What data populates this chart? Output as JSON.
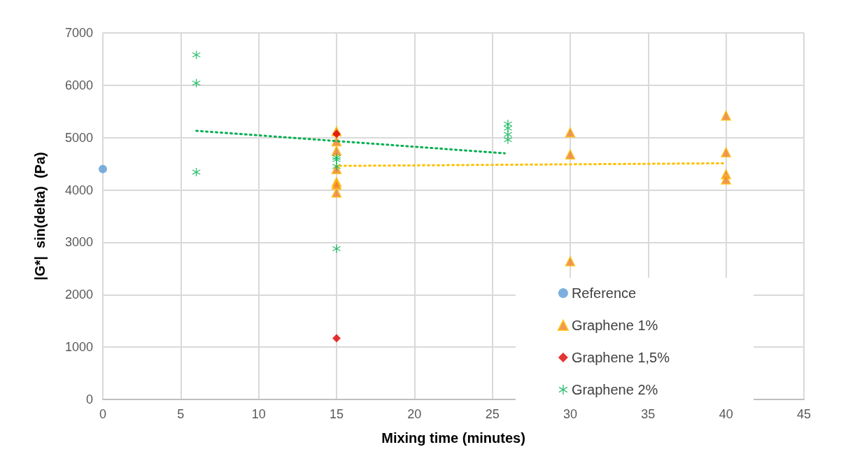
{
  "chart_data": {
    "type": "scatter",
    "xlabel": "Mixing time (minutes)",
    "ylabel": "|G*|  sin(delta)  (Pa)",
    "xlim": [
      0,
      45
    ],
    "xticks": [
      0,
      5,
      10,
      15,
      20,
      25,
      30,
      35,
      40,
      45
    ],
    "ylim": [
      0,
      7000
    ],
    "yticks": [
      0,
      1000,
      2000,
      3000,
      4000,
      5000,
      6000,
      7000
    ],
    "grid": true,
    "legend": "bottom right",
    "series": [
      {
        "name": "Reference",
        "color": "#5b9bd5",
        "marker": "circle",
        "x": [
          0
        ],
        "values": [
          4400
        ]
      },
      {
        "name": "Graphene 1%",
        "color": "#ed7d31",
        "marker": "triangle",
        "x": [
          15,
          15,
          15,
          15,
          15,
          15,
          15,
          30,
          30,
          30,
          40,
          40,
          40,
          40
        ],
        "values": [
          5120,
          4930,
          4750,
          4400,
          4150,
          4100,
          3950,
          5100,
          4680,
          2640,
          5420,
          4720,
          4300,
          4200
        ]
      },
      {
        "name": "Graphene 1,5%",
        "color": "#e00000",
        "marker": "diamond",
        "x": [
          15,
          15
        ],
        "values": [
          5070,
          1170
        ]
      },
      {
        "name": "Graphene 2%",
        "color": "#00b050",
        "marker": "star",
        "x": [
          6,
          6,
          6,
          15,
          15,
          15,
          15,
          26,
          26,
          26,
          26
        ],
        "values": [
          6580,
          6040,
          4340,
          4620,
          4580,
          4450,
          2880,
          5260,
          5180,
          5060,
          4960
        ]
      },
      {
        "type": "line",
        "color": "#00b050",
        "line_style": "dotted",
        "marker": "none",
        "x": [
          6,
          25.8
        ],
        "values": [
          5130,
          4700
        ]
      },
      {
        "type": "line",
        "color": "#ffc000",
        "line_style": "dotted",
        "marker": "none",
        "x": [
          15.2,
          40
        ],
        "values": [
          4460,
          4510
        ]
      }
    ]
  }
}
